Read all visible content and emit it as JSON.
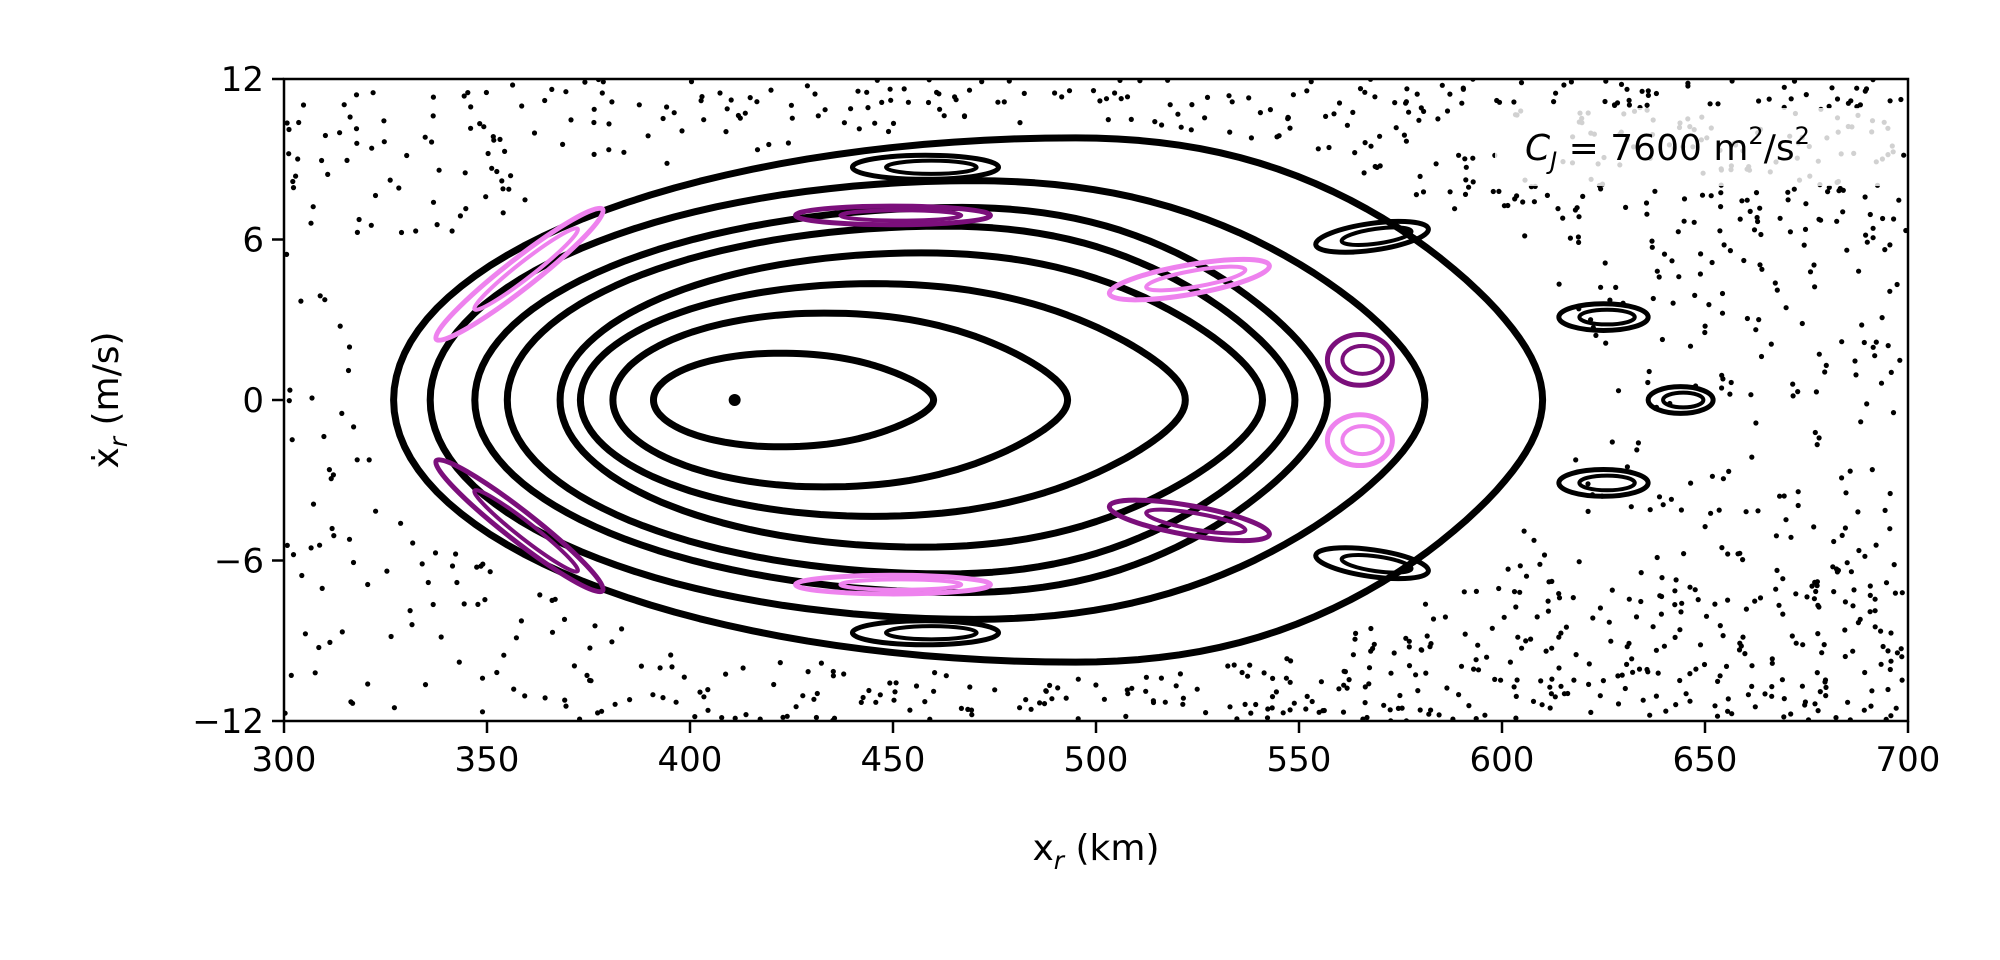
{
  "chart_data": {
    "type": "scatter",
    "title": "",
    "xlabel": "x",
    "xlabel_sub": "r",
    "xlabel_unit": " (km)",
    "ylabel": "ẋ",
    "ylabel_sub": "r",
    "ylabel_unit": " (m/s)",
    "xlim": [
      300,
      700
    ],
    "ylim": [
      -12,
      12
    ],
    "xticks": [
      {
        "value": 300,
        "label": "300"
      },
      {
        "value": 350,
        "label": "350"
      },
      {
        "value": 400,
        "label": "400"
      },
      {
        "value": 450,
        "label": "450"
      },
      {
        "value": 500,
        "label": "500"
      },
      {
        "value": 550,
        "label": "550"
      },
      {
        "value": 600,
        "label": "600"
      },
      {
        "value": 650,
        "label": "650"
      },
      {
        "value": 700,
        "label": "700"
      }
    ],
    "yticks": [
      {
        "value": 12,
        "label": "12"
      },
      {
        "value": 6,
        "label": "6"
      },
      {
        "value": 0,
        "label": "0"
      },
      {
        "value": -6,
        "label": "−6"
      },
      {
        "value": -12,
        "label": "−12"
      }
    ],
    "grid": false,
    "annotation": {
      "prefix": "C",
      "sub": "J",
      "value": " = 7600 m",
      "sup": "2",
      "mid": "/s",
      "sup2": "2",
      "position": "top-right"
    },
    "colors": {
      "black": "#000000",
      "purple": "#7b0f7b",
      "pink": "#ee82ee"
    },
    "center_point": {
      "x": 411,
      "y": 0
    },
    "closed_curves": [
      {
        "cx": 422,
        "rx_left": 31,
        "rx_right": 38,
        "ry": 1.75,
        "color": "#000000"
      },
      {
        "cx": 433,
        "rx_left": 52,
        "rx_right": 60,
        "ry": 3.25,
        "color": "#000000"
      },
      {
        "cx": 445,
        "rx_left": 72,
        "rx_right": 77,
        "ry": 4.35,
        "color": "#000000"
      },
      {
        "cx": 457,
        "rx_left": 89,
        "rx_right": 84,
        "ry": 5.5,
        "color": "#000000"
      },
      {
        "cx": 463,
        "rx_left": 108,
        "rx_right": 86,
        "ry": 6.5,
        "color": "#000000"
      },
      {
        "cx": 467,
        "rx_left": 120,
        "rx_right": 90,
        "ry": 7.2,
        "color": "#000000"
      },
      {
        "cx": 470,
        "rx_left": 134,
        "rx_right": 111,
        "ry": 8.2,
        "color": "#000000"
      },
      {
        "cx": 495,
        "rx_left": 168,
        "rx_right": 115,
        "ry": 9.8,
        "color": "#000000"
      }
    ],
    "islands": [
      {
        "cx": 458,
        "cy": 8.7,
        "rx": 18,
        "ry": 0.45,
        "angle": 0,
        "color": "#000000"
      },
      {
        "cx": 458,
        "cy": -8.7,
        "rx": 18,
        "ry": 0.45,
        "angle": 0,
        "color": "#000000"
      },
      {
        "cx": 568,
        "cy": 6.1,
        "rx": 14,
        "ry": 0.5,
        "angle": -8,
        "color": "#000000"
      },
      {
        "cx": 568,
        "cy": -6.1,
        "rx": 14,
        "ry": 0.5,
        "angle": 8,
        "color": "#000000"
      },
      {
        "cx": 625,
        "cy": 3.1,
        "rx": 11,
        "ry": 0.5,
        "angle": 0,
        "color": "#000000"
      },
      {
        "cx": 625,
        "cy": -3.1,
        "rx": 11,
        "ry": 0.5,
        "angle": 0,
        "color": "#000000"
      },
      {
        "cx": 644,
        "cy": 0,
        "rx": 8,
        "ry": 0.5,
        "angle": 0,
        "color": "#000000"
      },
      {
        "cx": 565,
        "cy": 1.5,
        "rx": 8,
        "ry": 0.95,
        "angle": 0,
        "color": "#7b0f7b"
      },
      {
        "cx": 565,
        "cy": -1.5,
        "rx": 8,
        "ry": 0.95,
        "angle": 0,
        "color": "#ee82ee"
      },
      {
        "cx": 450,
        "cy": 6.9,
        "rx": 24,
        "ry": 0.35,
        "angle": 0,
        "color": "#7b0f7b"
      },
      {
        "cx": 450,
        "cy": -6.9,
        "rx": 24,
        "ry": 0.35,
        "angle": 0,
        "color": "#ee82ee"
      },
      {
        "cx": 523,
        "cy": 4.5,
        "rx": 20,
        "ry": 0.55,
        "angle": -10,
        "color": "#ee82ee"
      },
      {
        "cx": 523,
        "cy": -4.5,
        "rx": 20,
        "ry": 0.55,
        "angle": 10,
        "color": "#7b0f7b"
      },
      {
        "cx": 358,
        "cy": 4.7,
        "rx": 26,
        "ry": 0.55,
        "angle": -38,
        "color": "#ee82ee"
      },
      {
        "cx": 358,
        "cy": -4.7,
        "rx": 26,
        "ry": 0.55,
        "angle": 38,
        "color": "#7b0f7b"
      }
    ]
  }
}
